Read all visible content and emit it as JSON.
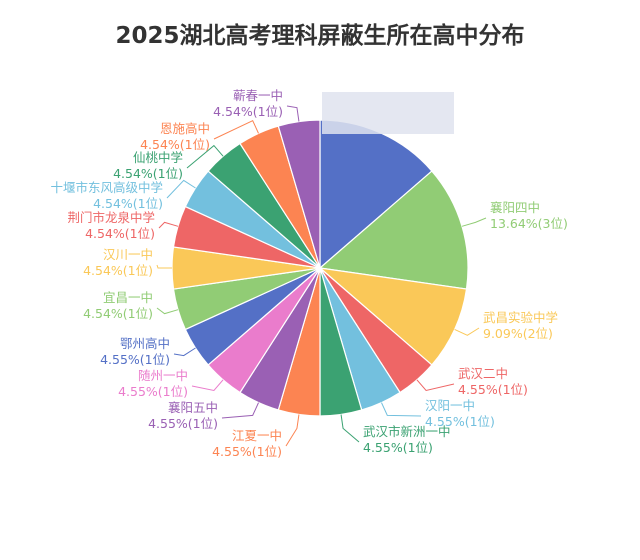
{
  "chart_data": {
    "type": "pie",
    "title": "2025湖北高考理科屏蔽生所在高中分布",
    "slices": [
      {
        "label": "",
        "value": 3,
        "percent": "",
        "count": "",
        "color": "#5470c6"
      },
      {
        "label": "襄阳四中",
        "value": 3,
        "percent": "13.64%",
        "count": "(3位)",
        "color": "#91cc75"
      },
      {
        "label": "武昌实验中学",
        "value": 2,
        "percent": "9.09%",
        "count": "(2位)",
        "color": "#fac858"
      },
      {
        "label": "武汉二中",
        "value": 1,
        "percent": "4.55%",
        "count": "(1位)",
        "color": "#ee6666"
      },
      {
        "label": "汉阳一中",
        "value": 1,
        "percent": "4.55%",
        "count": "(1位)",
        "color": "#73c0de"
      },
      {
        "label": "武汉市新洲一中",
        "value": 1,
        "percent": "4.55%",
        "count": "(1位)",
        "color": "#3ba272"
      },
      {
        "label": "江夏一中",
        "value": 1,
        "percent": "4.55%",
        "count": "(1位)",
        "color": "#fc8452"
      },
      {
        "label": "襄阳五中",
        "value": 1,
        "percent": "4.55%",
        "count": "(1位)",
        "color": "#9a60b4"
      },
      {
        "label": "随州一中",
        "value": 1,
        "percent": "4.55%",
        "count": "(1位)",
        "color": "#ea7ccc"
      },
      {
        "label": "鄂州高中",
        "value": 1,
        "percent": "4.55%",
        "count": "(1位)",
        "color": "#5470c6"
      },
      {
        "label": "宜昌一中",
        "value": 1,
        "percent": "4.54%",
        "count": "(1位)",
        "color": "#91cc75"
      },
      {
        "label": "汉川一中",
        "value": 1,
        "percent": "4.54%",
        "count": "(1位)",
        "color": "#fac858"
      },
      {
        "label": "荆门市龙泉中学",
        "value": 1,
        "percent": "4.54%",
        "count": "(1位)",
        "color": "#ee6666"
      },
      {
        "label": "十堰市东风高级中学",
        "value": 1,
        "percent": "4.54%",
        "count": "(1位)",
        "color": "#73c0de"
      },
      {
        "label": "仙桃中学",
        "value": 1,
        "percent": "4.54%",
        "count": "(1位)",
        "color": "#3ba272"
      },
      {
        "label": "恩施高中",
        "value": 1,
        "percent": "4.54%",
        "count": "(1位)",
        "color": "#fc8452"
      },
      {
        "label": "蕲春一中",
        "value": 1,
        "percent": "4.54%",
        "count": "(1位)",
        "color": "#9a60b4"
      }
    ]
  }
}
